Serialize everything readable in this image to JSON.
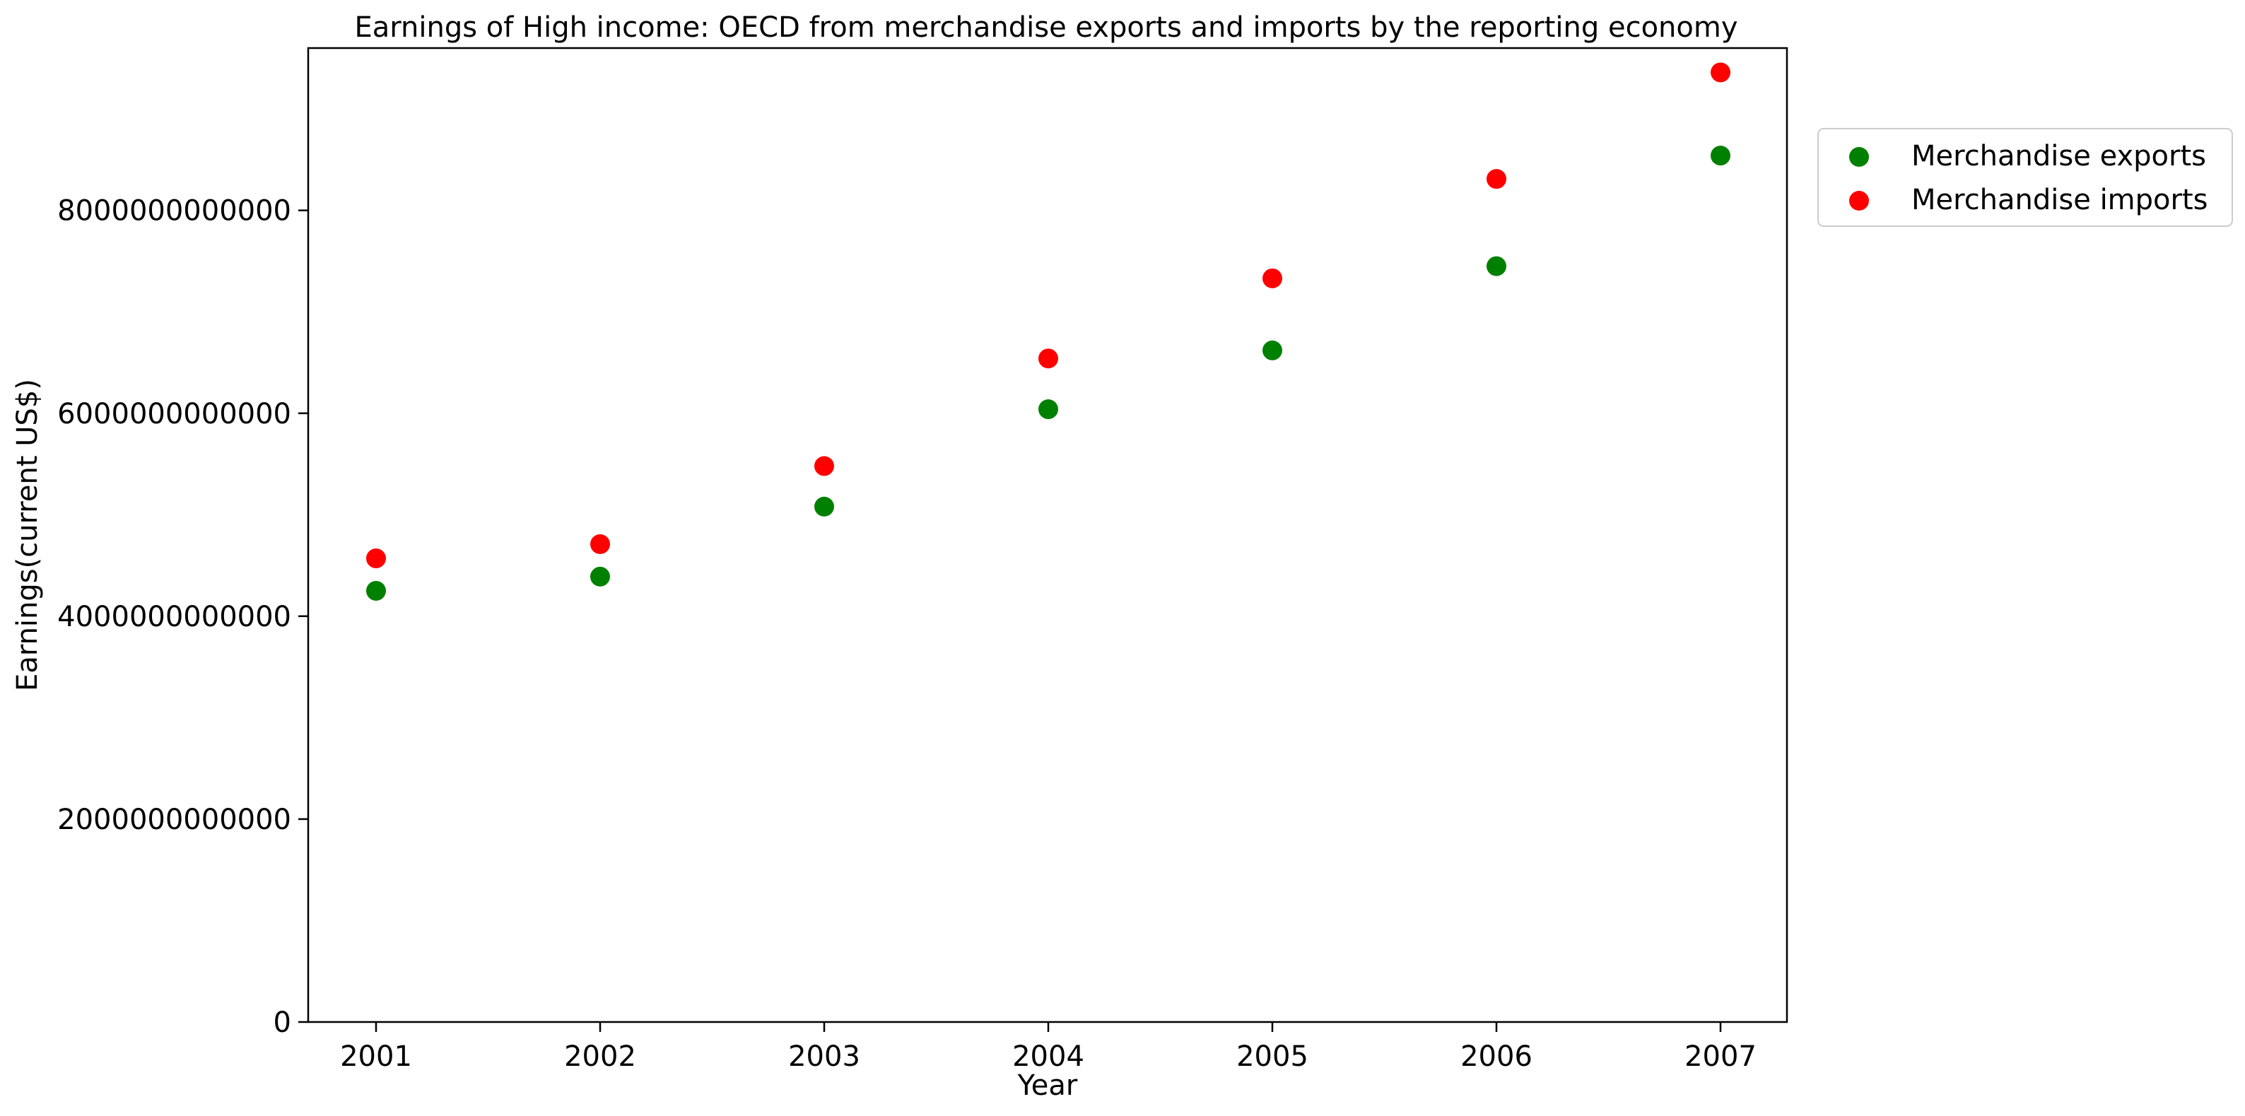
{
  "chart_data": {
    "type": "scatter",
    "title": "Earnings of High income: OECD from merchandise exports and imports by the reporting economy",
    "xlabel": "Year",
    "ylabel": "Earnings(current US$)",
    "x": [
      "2001",
      "2002",
      "2003",
      "2004",
      "2005",
      "2006",
      "2007"
    ],
    "ylim": [
      0,
      9600000000000
    ],
    "yticks": [
      "0",
      "2000000000000",
      "4000000000000",
      "6000000000000",
      "8000000000000"
    ],
    "ytick_values": [
      0,
      2000000000000,
      4000000000000,
      6000000000000,
      8000000000000
    ],
    "series": [
      {
        "name": "Merchandise exports",
        "color": "#008000",
        "values": [
          4250000000000,
          4390000000000,
          5080000000000,
          6040000000000,
          6620000000000,
          7450000000000,
          8540000000000
        ]
      },
      {
        "name": "Merchandise imports",
        "color": "#ff0000",
        "values": [
          4570000000000,
          4710000000000,
          5480000000000,
          6540000000000,
          7330000000000,
          8310000000000,
          9360000000000
        ]
      }
    ],
    "grid": false,
    "legend_position": "outside top-right"
  }
}
